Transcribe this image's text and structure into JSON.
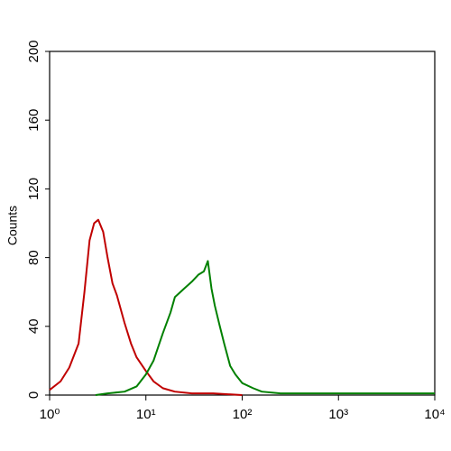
{
  "chart_data": {
    "type": "line",
    "ylabel": "Counts",
    "xscale": "log",
    "xlim": [
      1,
      10000
    ],
    "xticks": [
      {
        "value": 1,
        "label": "10⁰"
      },
      {
        "value": 10,
        "label": "10¹"
      },
      {
        "value": 100,
        "label": "10²"
      },
      {
        "value": 1000,
        "label": "10³"
      },
      {
        "value": 10000,
        "label": "10⁴"
      }
    ],
    "ylim": [
      0,
      200
    ],
    "yticks": [
      0,
      40,
      80,
      120,
      160,
      200
    ],
    "series": [
      {
        "color": "#c00000",
        "x": [
          1,
          1.3,
          1.6,
          2,
          2.3,
          2.6,
          2.9,
          3.2,
          3.6,
          4,
          4.5,
          5,
          6,
          7,
          8,
          10,
          12,
          15,
          20,
          30,
          50,
          100
        ],
        "values": [
          3,
          8,
          16,
          30,
          60,
          90,
          100,
          102,
          95,
          80,
          65,
          58,
          42,
          30,
          22,
          14,
          8,
          4,
          2,
          1,
          1,
          0
        ]
      },
      {
        "color": "#008000",
        "x": [
          3,
          4,
          6,
          8,
          10,
          12,
          15,
          18,
          20,
          25,
          30,
          35,
          40,
          44,
          48,
          52,
          58,
          65,
          75,
          85,
          100,
          130,
          160,
          250,
          500,
          1000,
          3000,
          10000
        ],
        "values": [
          0,
          1,
          2,
          5,
          12,
          20,
          36,
          48,
          57,
          62,
          66,
          70,
          72,
          78,
          62,
          52,
          41,
          30,
          17,
          12,
          7,
          4,
          2,
          1,
          1,
          1,
          1,
          1
        ]
      }
    ]
  }
}
